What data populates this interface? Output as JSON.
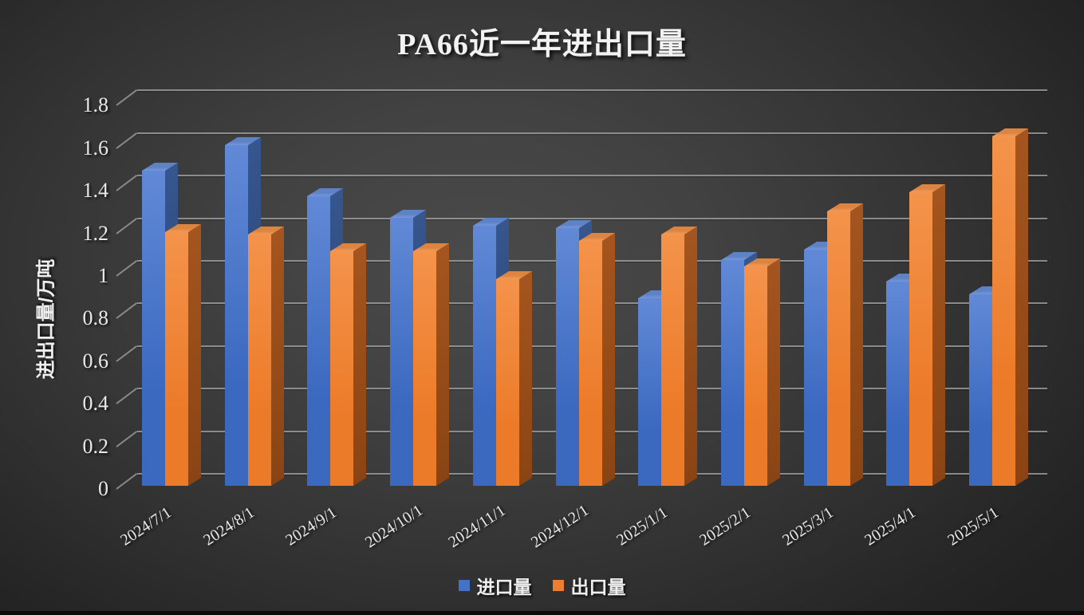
{
  "chart_data": {
    "type": "bar",
    "style": "3d-clustered-column",
    "title": "PA66近一年进出口量",
    "xlabel": "",
    "ylabel": "进出口量/万吨",
    "categories": [
      "2024/7/1",
      "2024/8/1",
      "2024/9/1",
      "2024/10/1",
      "2024/11/1",
      "2024/12/1",
      "2025/1/1",
      "2025/2/1",
      "2025/3/1",
      "2025/4/1",
      "2025/5/1"
    ],
    "series": [
      {
        "name": "进口量",
        "color": "#4472C4",
        "values": [
          1.48,
          1.6,
          1.36,
          1.26,
          1.22,
          1.21,
          0.88,
          1.06,
          1.11,
          0.96,
          0.9
        ]
      },
      {
        "name": "出口量",
        "color": "#ED7D31",
        "values": [
          1.19,
          1.18,
          1.1,
          1.1,
          0.97,
          1.15,
          1.18,
          1.03,
          1.29,
          1.38,
          1.64
        ]
      }
    ],
    "ylim": [
      0,
      1.8
    ],
    "ytick_step": 0.2,
    "ytick_labels": [
      "0",
      "0.2",
      "0.4",
      "0.6",
      "0.8",
      "1",
      "1.2",
      "1.4",
      "1.6",
      "1.8"
    ],
    "grid": true,
    "legend_position": "bottom",
    "background": "dark-gray-gradient"
  },
  "palette": {
    "import_front_top": "#6189D6",
    "import_front_bottom": "#3B69C0",
    "import_top_face": "#5E82C6",
    "import_top_face_edge": "#7397D8",
    "import_side_top": "#36568F",
    "import_side_bottom": "#283F6B",
    "export_front_top": "#F4934B",
    "export_front_bottom": "#EC7B29",
    "export_top_face": "#DD8440",
    "export_top_face_edge": "#F09B5C",
    "export_side_top": "#A5551E",
    "export_side_bottom": "#8A4413",
    "gridline": "#9A9A9A",
    "text": "#EFEFEF",
    "background_center": "#4A4A4A",
    "background_edge": "#212121",
    "bottom_strip": "#0B0B0B"
  }
}
